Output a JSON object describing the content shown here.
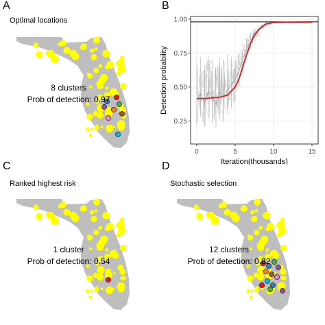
{
  "panels": {
    "a": {
      "letter": "A",
      "subtitle": "Optimal locations",
      "clusters_text": "8 clusters",
      "prob_text": "Prob of detection: 0.97"
    },
    "b": {
      "letter": "B"
    },
    "c": {
      "letter": "C",
      "subtitle": "Ranked highest risk",
      "clusters_text": "1 cluster",
      "prob_text": "Prob of detection: 0.54"
    },
    "d": {
      "letter": "D",
      "subtitle": "Stochastic selection",
      "clusters_text": "12 clusters",
      "prob_text": "Prob of detection: 0.82"
    }
  },
  "colors": {
    "land": "#bebebe",
    "risk": "#ffff00",
    "fit_line": "#cc2222",
    "trace": "#b5b5b5",
    "cluster_colors": [
      "#e41a1c",
      "#377eb8",
      "#4daf4a",
      "#984ea3",
      "#ff7f00",
      "#a65628",
      "#f781bf",
      "#00bcd4"
    ]
  },
  "chart_data": {
    "type": "line",
    "xlabel": "Iteration(thousands)",
    "ylabel": "Detection probability",
    "xlim": [
      -0.8,
      15.8
    ],
    "ylim": [
      0.08,
      1.02
    ],
    "x_ticks": [
      0,
      5,
      10,
      15
    ],
    "y_ticks": [
      0.25,
      0.5,
      0.75,
      1.0
    ],
    "y_tick_labels": [
      "0.25",
      "0.50",
      "0.75",
      "1.00"
    ],
    "grid": true,
    "reference_line": {
      "y": 0.98
    },
    "series": [
      {
        "kind": "trace",
        "x": [
          0,
          0.5,
          1,
          1.5,
          2,
          2.5,
          3,
          3.5,
          4,
          4.5,
          5,
          5.5,
          6,
          6.5,
          7,
          7.5,
          8,
          8.5,
          9,
          9.5,
          10,
          11,
          12,
          13,
          14,
          15
        ],
        "y": [
          0.4,
          0.45,
          0.38,
          0.47,
          0.42,
          0.37,
          0.46,
          0.43,
          0.48,
          0.52,
          0.55,
          0.62,
          0.71,
          0.78,
          0.84,
          0.89,
          0.92,
          0.95,
          0.96,
          0.97,
          0.975,
          0.975,
          0.975,
          0.975,
          0.975,
          0.975
        ],
        "y_low": [
          0.22,
          0.28,
          0.2,
          0.27,
          0.23,
          0.2,
          0.26,
          0.24,
          0.3,
          0.35,
          0.4,
          0.5,
          0.6,
          0.7,
          0.78,
          0.84,
          0.88,
          0.92,
          0.94,
          0.96,
          0.97,
          0.97,
          0.97,
          0.97,
          0.97,
          0.97
        ],
        "y_high": [
          0.68,
          0.72,
          0.66,
          0.73,
          0.7,
          0.64,
          0.72,
          0.7,
          0.74,
          0.72,
          0.7,
          0.76,
          0.82,
          0.86,
          0.9,
          0.93,
          0.95,
          0.97,
          0.98,
          0.98,
          0.98,
          0.98,
          0.98,
          0.98,
          0.98,
          0.98
        ]
      },
      {
        "kind": "fit",
        "x": [
          0,
          1,
          2,
          3,
          4,
          5,
          5.5,
          6,
          6.5,
          7,
          7.5,
          8,
          9,
          10,
          12,
          15
        ],
        "y": [
          0.415,
          0.415,
          0.42,
          0.425,
          0.44,
          0.5,
          0.56,
          0.65,
          0.74,
          0.82,
          0.88,
          0.92,
          0.965,
          0.975,
          0.978,
          0.98
        ]
      }
    ]
  }
}
